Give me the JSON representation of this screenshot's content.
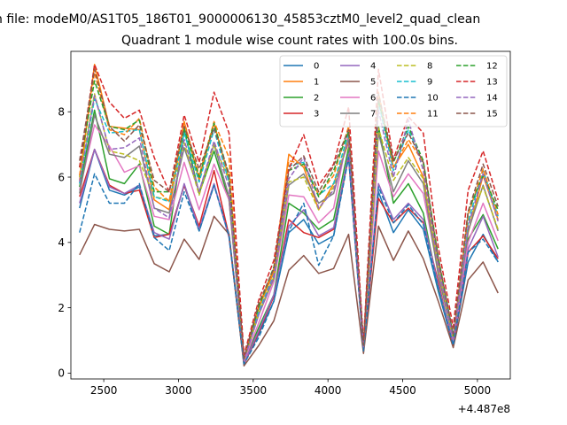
{
  "suptitle": "n file: modeM0/AS1T05_186T01_9000006130_45853cztM0_level2_quad_clean",
  "chart_data": {
    "type": "line",
    "title": "Quadrant 1 module wise count rates with 100.0s bins.",
    "xlabel": "",
    "ylabel": "",
    "x_offset_label": "+4.487e8",
    "xlim": [
      2280,
      5220
    ],
    "ylim": [
      -0.18,
      9.85
    ],
    "xticks": [
      2500,
      3000,
      3500,
      4000,
      4500,
      5000
    ],
    "yticks": [
      0,
      2,
      4,
      6,
      8
    ],
    "grid": false,
    "legend_position": "top-right",
    "x": [
      2338,
      2438,
      2538,
      2638,
      2738,
      2838,
      2938,
      3038,
      3138,
      3238,
      3338,
      3438,
      3538,
      3638,
      3738,
      3838,
      3938,
      4038,
      4138,
      4238,
      4338,
      4438,
      4538,
      4638,
      4738,
      4838,
      4938,
      5038,
      5138
    ],
    "series": [
      {
        "name": "0",
        "color": "#1f77b4",
        "dash": "solid",
        "values": [
          5.05,
          6.85,
          5.6,
          5.45,
          5.7,
          4.2,
          4.25,
          5.75,
          4.35,
          5.75,
          4.25,
          0.28,
          1.2,
          2.2,
          4.3,
          4.7,
          3.95,
          4.2,
          6.7,
          0.65,
          5.55,
          4.3,
          5.0,
          4.4,
          2.5,
          0.85,
          3.4,
          4.25,
          3.4
        ]
      },
      {
        "name": "1",
        "color": "#ff7f0e",
        "dash": "solid",
        "values": [
          5.9,
          9.45,
          7.55,
          7.5,
          7.45,
          5.3,
          5.0,
          7.7,
          5.9,
          7.65,
          5.95,
          0.4,
          2.0,
          3.1,
          6.7,
          6.3,
          5.0,
          5.8,
          7.05,
          0.8,
          8.4,
          6.3,
          7.0,
          6.0,
          3.2,
          1.05,
          4.3,
          6.05,
          4.7
        ]
      },
      {
        "name": "2",
        "color": "#2ca02c",
        "dash": "solid",
        "values": [
          5.7,
          8.05,
          5.95,
          5.8,
          6.4,
          4.5,
          4.25,
          7.45,
          5.5,
          6.8,
          5.3,
          0.35,
          1.4,
          2.4,
          5.2,
          4.9,
          4.4,
          4.7,
          6.9,
          0.75,
          7.55,
          5.2,
          5.8,
          4.9,
          2.6,
          0.95,
          4.1,
          4.85,
          3.8
        ]
      },
      {
        "name": "3",
        "color": "#d62728",
        "dash": "solid",
        "values": [
          5.4,
          6.85,
          5.75,
          5.5,
          5.6,
          4.15,
          4.25,
          5.75,
          4.5,
          6.2,
          4.2,
          0.28,
          1.25,
          2.35,
          4.7,
          4.3,
          4.15,
          4.4,
          6.6,
          0.7,
          5.35,
          4.6,
          5.05,
          4.6,
          2.8,
          0.8,
          3.7,
          4.2,
          3.5
        ]
      },
      {
        "name": "4",
        "color": "#9467bd",
        "dash": "solid",
        "values": [
          5.2,
          6.85,
          5.7,
          5.5,
          5.75,
          4.3,
          4.1,
          5.8,
          4.4,
          5.8,
          4.15,
          0.3,
          1.3,
          2.4,
          4.5,
          5.0,
          4.2,
          4.45,
          6.7,
          0.7,
          5.8,
          4.7,
          5.2,
          4.7,
          2.7,
          0.9,
          3.8,
          4.8,
          3.55
        ]
      },
      {
        "name": "5",
        "color": "#8c564b",
        "dash": "solid",
        "values": [
          3.62,
          4.55,
          4.4,
          4.35,
          4.4,
          3.35,
          3.1,
          4.1,
          3.48,
          4.8,
          4.25,
          0.22,
          0.85,
          1.6,
          3.15,
          3.6,
          3.05,
          3.2,
          4.25,
          0.6,
          4.5,
          3.45,
          4.35,
          3.5,
          2.2,
          0.78,
          2.85,
          3.4,
          2.45
        ]
      },
      {
        "name": "6",
        "color": "#e377c2",
        "dash": "solid",
        "values": [
          5.6,
          7.6,
          6.95,
          6.15,
          6.35,
          4.8,
          4.7,
          6.45,
          5.0,
          6.4,
          5.3,
          0.35,
          1.55,
          2.8,
          5.45,
          5.4,
          4.6,
          5.05,
          7.45,
          0.75,
          6.8,
          5.4,
          6.1,
          5.5,
          3.1,
          1.0,
          4.0,
          5.2,
          4.05
        ]
      },
      {
        "name": "7",
        "color": "#7f7f7f",
        "dash": "solid",
        "values": [
          5.5,
          7.9,
          6.7,
          6.6,
          6.95,
          5.05,
          4.9,
          6.9,
          5.55,
          7.0,
          5.4,
          0.4,
          1.8,
          2.9,
          5.75,
          6.1,
          5.2,
          5.5,
          7.2,
          0.75,
          7.35,
          5.55,
          6.5,
          5.8,
          3.0,
          1.05,
          4.35,
          5.75,
          4.35
        ]
      },
      {
        "name": "8",
        "color": "#bcbd22",
        "dash": "dashed",
        "values": [
          6.0,
          8.55,
          6.8,
          6.7,
          6.5,
          5.4,
          5.3,
          7.05,
          5.45,
          7.0,
          5.9,
          0.4,
          1.85,
          2.95,
          5.85,
          6.0,
          5.0,
          5.7,
          7.2,
          0.78,
          7.5,
          5.9,
          6.6,
          5.95,
          3.25,
          1.05,
          4.6,
          5.7,
          4.4
        ]
      },
      {
        "name": "9",
        "color": "#17becf",
        "dash": "dashed",
        "values": [
          5.8,
          8.4,
          7.35,
          7.4,
          7.45,
          5.4,
          5.25,
          7.35,
          5.85,
          7.45,
          5.85,
          0.4,
          1.9,
          3.0,
          6.35,
          6.45,
          5.45,
          5.8,
          7.35,
          0.8,
          8.3,
          6.2,
          7.45,
          6.4,
          3.35,
          1.1,
          4.65,
          6.2,
          4.8
        ]
      },
      {
        "name": "10",
        "color": "#1f77b4",
        "dash": "dashed",
        "values": [
          4.3,
          6.1,
          5.2,
          5.2,
          5.8,
          4.15,
          3.75,
          5.55,
          4.35,
          5.75,
          4.2,
          0.28,
          1.1,
          2.2,
          4.35,
          5.2,
          3.3,
          4.2,
          6.6,
          0.68,
          5.7,
          4.6,
          5.15,
          4.55,
          2.6,
          0.85,
          3.7,
          4.1,
          3.4
        ]
      },
      {
        "name": "11",
        "color": "#ff7f0e",
        "dash": "dashed",
        "values": [
          6.05,
          9.2,
          7.45,
          7.3,
          7.8,
          5.7,
          5.25,
          7.7,
          6.05,
          7.7,
          6.6,
          0.45,
          2.05,
          3.2,
          6.5,
          6.4,
          5.45,
          6.05,
          7.55,
          0.85,
          8.6,
          6.3,
          7.15,
          6.45,
          3.45,
          1.1,
          4.85,
          6.25,
          4.85
        ]
      },
      {
        "name": "12",
        "color": "#2ca02c",
        "dash": "dashed",
        "values": [
          6.3,
          8.95,
          7.55,
          7.45,
          7.75,
          5.55,
          5.55,
          7.5,
          6.0,
          7.65,
          6.05,
          0.45,
          2.05,
          3.25,
          6.2,
          6.4,
          5.4,
          6.2,
          7.4,
          0.85,
          8.35,
          6.45,
          7.55,
          6.5,
          3.55,
          1.15,
          4.95,
          6.05,
          5.0
        ]
      },
      {
        "name": "13",
        "color": "#d62728",
        "dash": "dashed",
        "values": [
          6.3,
          9.45,
          8.3,
          7.8,
          8.05,
          6.6,
          5.55,
          7.9,
          6.45,
          8.6,
          7.35,
          0.55,
          2.25,
          3.45,
          6.25,
          7.3,
          5.75,
          6.4,
          8.15,
          0.95,
          9.3,
          6.55,
          7.85,
          7.35,
          3.85,
          1.4,
          5.6,
          6.8,
          5.3
        ]
      },
      {
        "name": "14",
        "color": "#9467bd",
        "dash": "dashed",
        "values": [
          5.85,
          8.5,
          6.85,
          6.9,
          7.2,
          5.05,
          4.75,
          7.15,
          5.55,
          7.1,
          5.7,
          0.4,
          1.8,
          2.95,
          5.95,
          6.6,
          5.05,
          5.6,
          7.15,
          0.8,
          8.05,
          6.0,
          7.75,
          6.2,
          3.3,
          1.05,
          4.5,
          6.1,
          4.65
        ]
      },
      {
        "name": "15",
        "color": "#8c564b",
        "dash": "dashed",
        "values": [
          6.5,
          9.3,
          7.55,
          7.1,
          7.6,
          5.9,
          5.55,
          7.55,
          6.25,
          7.5,
          6.1,
          0.45,
          2.15,
          3.2,
          6.2,
          6.65,
          5.55,
          6.35,
          7.45,
          0.85,
          8.55,
          6.5,
          7.35,
          6.45,
          3.5,
          1.2,
          4.95,
          6.4,
          5.1
        ]
      }
    ]
  }
}
